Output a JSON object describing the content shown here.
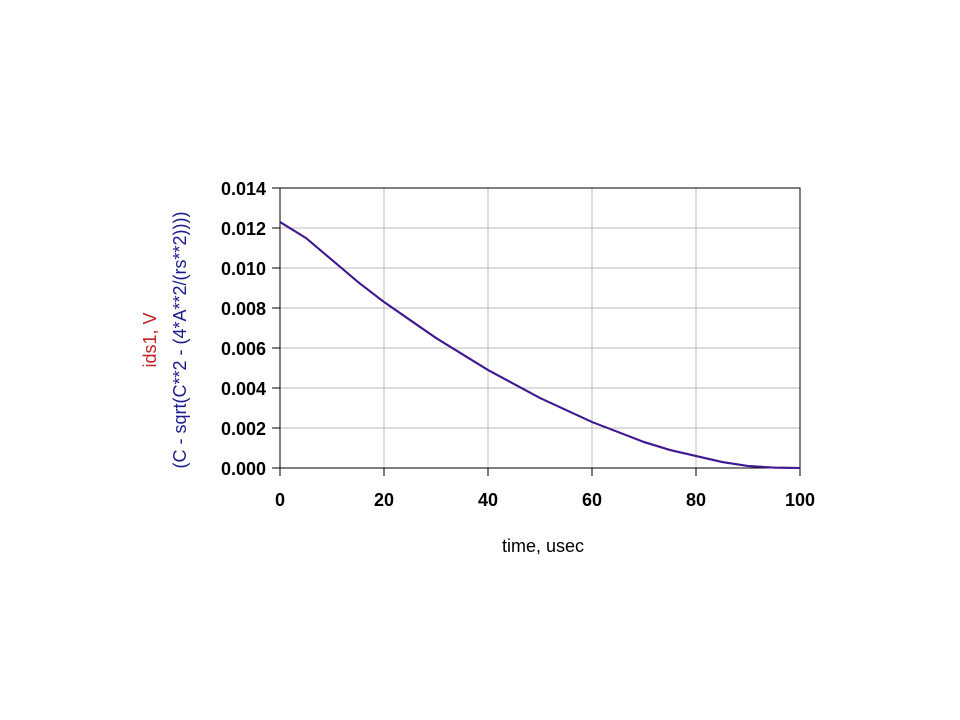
{
  "chart_data": {
    "type": "line",
    "xlabel": "time, usec",
    "ylabels": [
      {
        "text": "ids1, V",
        "color": "#c02020"
      },
      {
        "text": "(C - sqrt(C**2 - (4*A**2/(rs**2))))",
        "color": "#1c1c8c"
      }
    ],
    "x": [
      0,
      5,
      10,
      15,
      20,
      25,
      30,
      35,
      40,
      45,
      50,
      55,
      60,
      65,
      70,
      75,
      80,
      85,
      90,
      95,
      100
    ],
    "series": [
      {
        "name": "ids1, V",
        "color": "#c02020",
        "values": [
          0.0123,
          0.0115,
          0.0104,
          0.0093,
          0.0083,
          0.0074,
          0.0065,
          0.0057,
          0.0049,
          0.0042,
          0.0035,
          0.0029,
          0.0023,
          0.0018,
          0.0013,
          0.0009,
          0.0006,
          0.0003,
          0.0001,
          2e-05,
          0
        ]
      },
      {
        "name": "(C - sqrt(C**2 - (4*A**2/(rs**2))))",
        "color": "#3a1a9a",
        "values": [
          0.0123,
          0.0115,
          0.0104,
          0.0093,
          0.0083,
          0.0074,
          0.0065,
          0.0057,
          0.0049,
          0.0042,
          0.0035,
          0.0029,
          0.0023,
          0.0018,
          0.0013,
          0.0009,
          0.0006,
          0.0003,
          0.0001,
          2e-05,
          0
        ]
      }
    ],
    "xlim": [
      0,
      100
    ],
    "xticks": [
      0,
      20,
      40,
      60,
      80,
      100
    ],
    "ylim": [
      0,
      0.014
    ],
    "yticks": [
      {
        "value": 0,
        "label": "0.000"
      },
      {
        "value": 0.002,
        "label": "0.002"
      },
      {
        "value": 0.004,
        "label": "0.004"
      },
      {
        "value": 0.006,
        "label": "0.006"
      },
      {
        "value": 0.008,
        "label": "0.008"
      },
      {
        "value": 0.01,
        "label": "0.010"
      },
      {
        "value": 0.012,
        "label": "0.012"
      },
      {
        "value": 0.014,
        "label": "0.014"
      }
    ],
    "grid": true
  }
}
